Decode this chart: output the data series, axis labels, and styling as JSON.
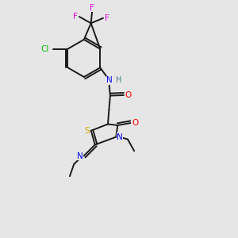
{
  "bg_color": "#e6e6e6",
  "bond_color": "#1a1a1a",
  "colors": {
    "N": "#0000ff",
    "O": "#ff0000",
    "S": "#ccaa00",
    "F": "#dd00dd",
    "Cl": "#00bb00",
    "H": "#447788"
  },
  "lw": 1.4
}
